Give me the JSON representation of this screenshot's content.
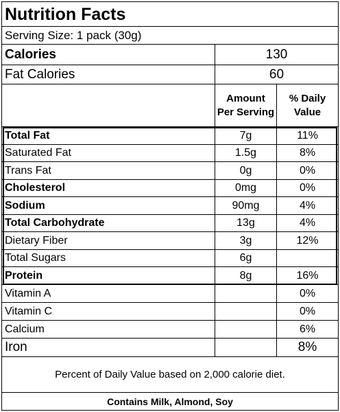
{
  "label": {
    "title": "Nutrition Facts",
    "serving_size": "Serving Size: 1 pack (30g)",
    "calories_label": "Calories",
    "calories_value": "130",
    "fat_calories_label": "Fat Calories",
    "fat_calories_value": "60",
    "header_amount_line1": "Amount",
    "header_amount_line2": "Per Serving",
    "header_dv_line1": "% Daily",
    "header_dv_line2": "Value",
    "nutrients": [
      {
        "name": "Total Fat",
        "amount": "7g",
        "dv": "11%"
      },
      {
        "name": "Saturated Fat",
        "amount": "1.5g",
        "dv": "8%"
      },
      {
        "name": "Trans Fat",
        "amount": "0g",
        "dv": "0%"
      },
      {
        "name": "Cholesterol",
        "amount": "0mg",
        "dv": "0%"
      },
      {
        "name": "Sodium",
        "amount": "90mg",
        "dv": "4%"
      },
      {
        "name": "Total Carbohydrate",
        "amount": "13g",
        "dv": "4%"
      },
      {
        "name": "Dietary Fiber",
        "amount": "3g",
        "dv": "12%"
      },
      {
        "name": "Total Sugars",
        "amount": "6g",
        "dv": ""
      },
      {
        "name": "Protein",
        "amount": "8g",
        "dv": "16%"
      }
    ],
    "vitamins": [
      {
        "name": "Vitamin A",
        "dv": "0%"
      },
      {
        "name": "Vitamin C",
        "dv": "0%"
      },
      {
        "name": "Calcium",
        "dv": "6%"
      },
      {
        "name": "Iron",
        "dv": "8%"
      }
    ],
    "footnote": "Percent of Daily Value based on 2,000 calorie diet.",
    "allergens": "Contains Milk, Almond, Soy"
  }
}
